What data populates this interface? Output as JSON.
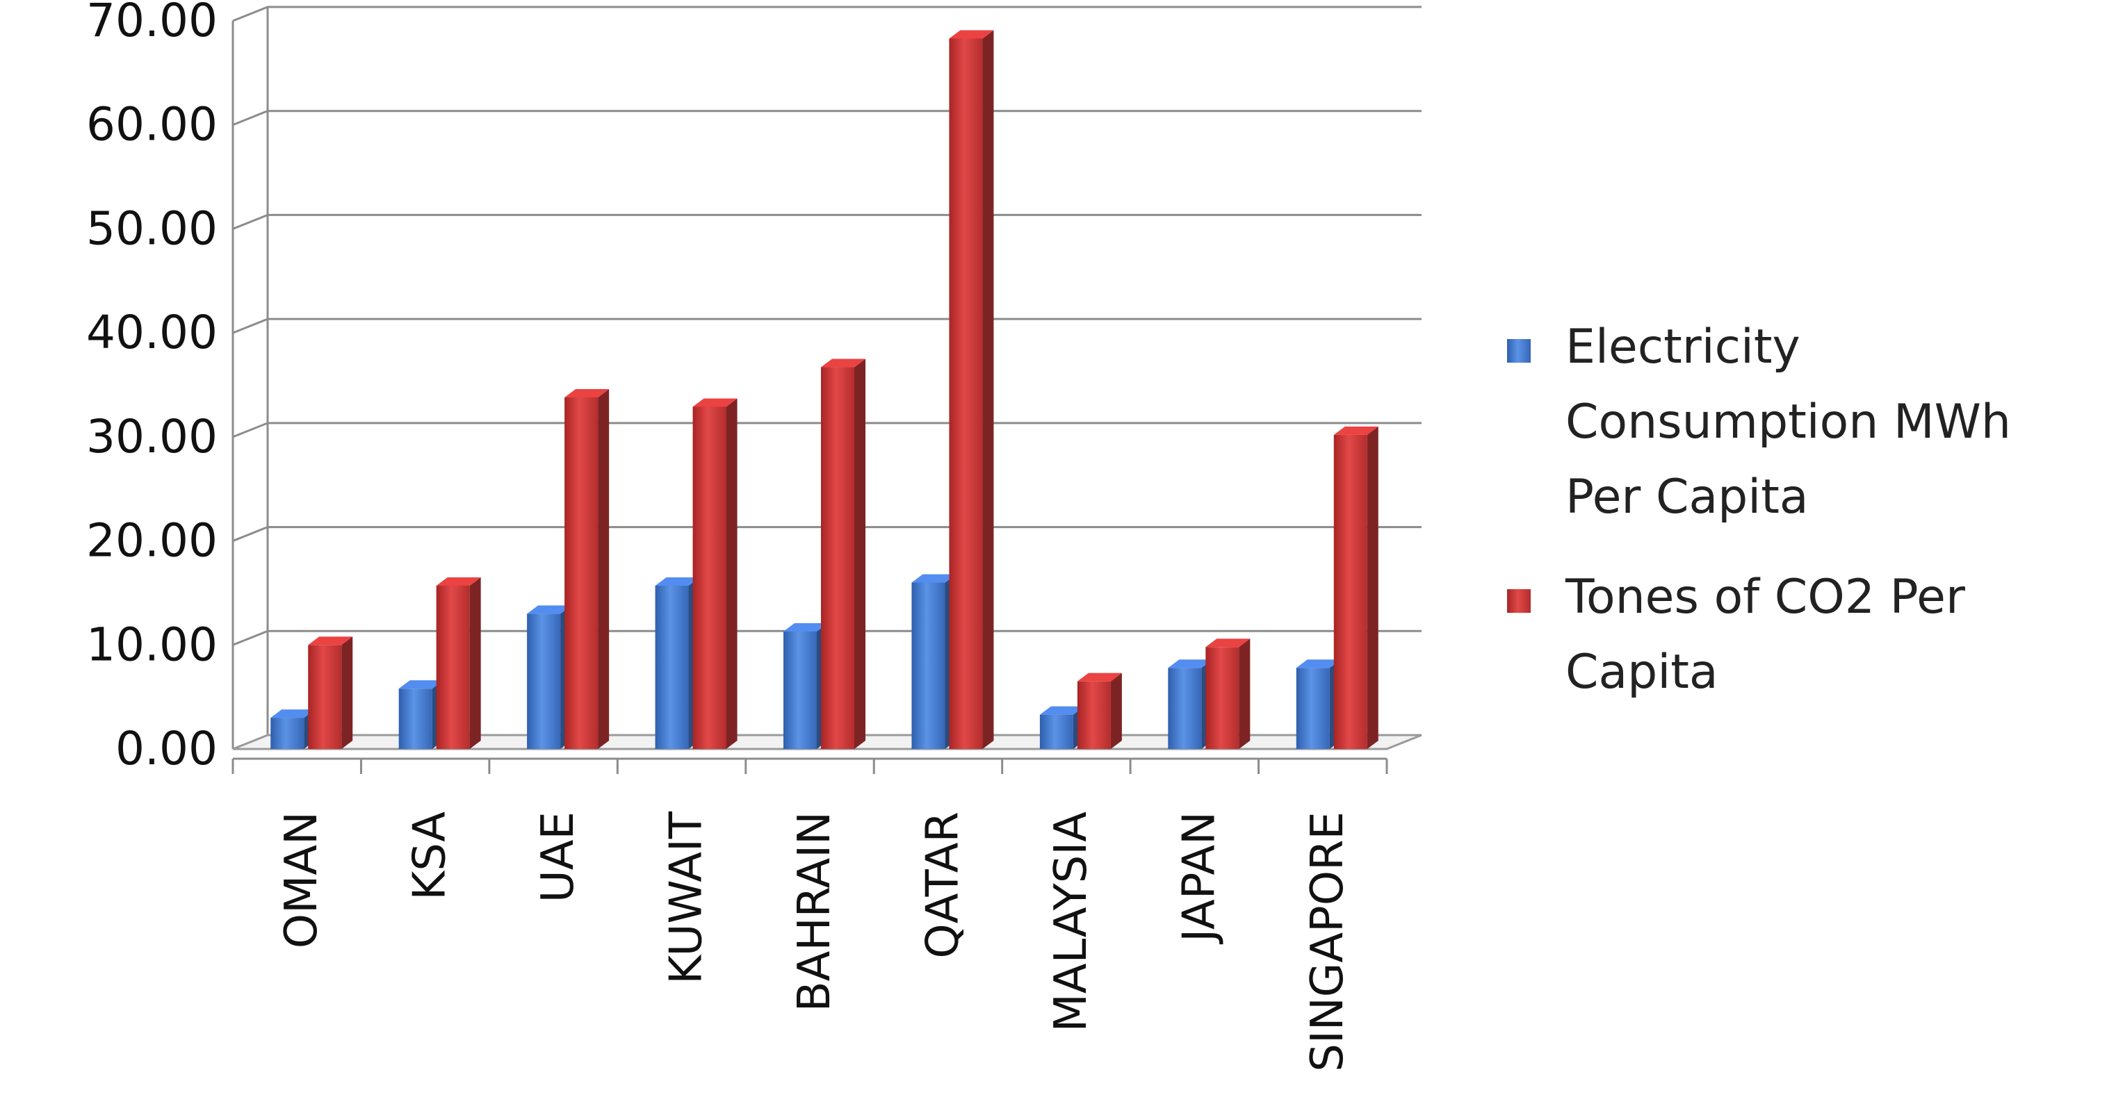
{
  "chart_data": {
    "type": "bar",
    "title": "",
    "xlabel": "",
    "ylabel": "",
    "categories": [
      "OMAN",
      "KSA",
      "UAE",
      "KUWAIT",
      "BAHRAIN",
      "QATAR",
      "MALAYSIA",
      "JAPAN",
      "SINGAPORE"
    ],
    "series": [
      {
        "name": "Electricity Consumption MWh Per Capita",
        "values": [
          3.0,
          5.8,
          13.0,
          15.7,
          11.3,
          16.0,
          3.3,
          7.8,
          7.8
        ],
        "color": "#4a7ed6"
      },
      {
        "name": "Tones of CO2 Per Capita",
        "values": [
          10.0,
          15.7,
          33.8,
          32.9,
          36.7,
          68.3,
          6.5,
          9.8,
          30.2
        ],
        "color": "#d23b3b"
      }
    ],
    "ylim": [
      0,
      70
    ],
    "yticks": [
      "0.00",
      "10.00",
      "20.00",
      "30.00",
      "40.00",
      "50.00",
      "60.00",
      "70.00"
    ],
    "grid": true,
    "legend_position": "right",
    "style": "3d-clustered-column"
  }
}
